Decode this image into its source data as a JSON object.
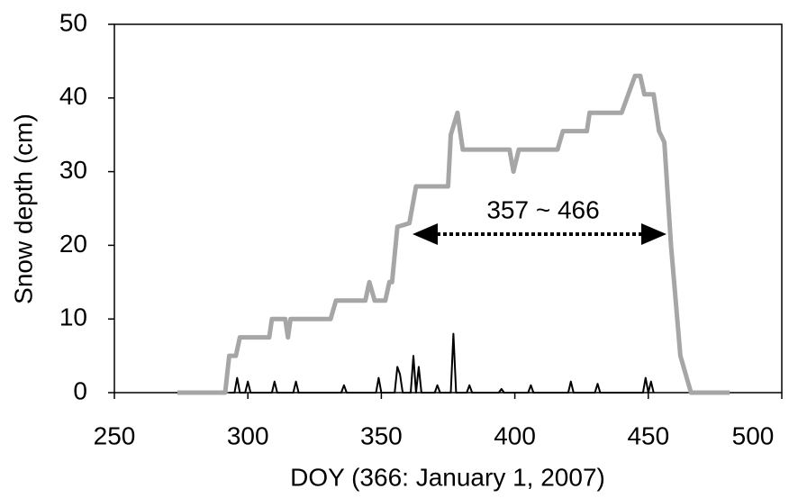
{
  "chart_data": {
    "type": "line",
    "x_label": "DOY (366: January 1, 2007)",
    "y_label": "Snow depth (cm)",
    "annotation": "357 ~ 466",
    "xlim": [
      250,
      500
    ],
    "xticks": [
      250,
      300,
      350,
      400,
      450,
      500
    ],
    "ylim": [
      0,
      50
    ],
    "yticks": [
      0,
      10,
      20,
      30,
      40,
      50
    ],
    "series": [
      {
        "color": "#a6a6a6",
        "width": 5,
        "x": [
          273.6,
          291.5,
          293,
          295.5,
          297,
          308,
          309,
          314,
          315,
          316,
          331,
          333,
          344,
          345.5,
          347.5,
          351.5,
          353,
          354,
          356,
          360.5,
          363,
          375,
          376,
          378.5,
          380.5,
          398,
          399.5,
          401.5,
          416,
          418,
          427,
          428,
          440,
          442.5,
          445,
          447,
          448.5,
          452,
          454,
          456,
          458.5,
          462,
          466,
          480.5
        ],
        "values": [
          0,
          0,
          5,
          5,
          7.5,
          7.5,
          10,
          10,
          7.5,
          10,
          10,
          12.5,
          12.5,
          15,
          12.5,
          12.5,
          15,
          15,
          22.5,
          23,
          28,
          28,
          35,
          38,
          33,
          33,
          30,
          33,
          33,
          35.5,
          35.5,
          38,
          38,
          40.5,
          43,
          43,
          40.5,
          40.5,
          35.5,
          34,
          20,
          5,
          0,
          0
        ]
      },
      {
        "color": "#000000",
        "width": 2,
        "x": [
          293,
          295,
          296,
          297,
          299,
          300,
          301,
          309,
          310,
          311,
          317,
          318,
          319,
          335,
          336,
          337,
          348,
          349,
          350,
          355,
          356,
          357,
          358,
          361,
          362,
          363,
          364,
          365,
          370,
          371,
          372,
          376,
          377,
          378,
          382,
          383,
          384,
          394,
          395,
          396,
          405,
          406,
          407,
          420,
          421,
          422,
          430,
          431,
          432,
          448,
          449,
          450,
          451,
          452
        ],
        "values": [
          0,
          0,
          2,
          0,
          0,
          1.5,
          0,
          0,
          1.5,
          0,
          0,
          1.5,
          0,
          0,
          1,
          0,
          0,
          2,
          0,
          0,
          3.5,
          2.5,
          0,
          0,
          5,
          0,
          3.5,
          0,
          0,
          1,
          0,
          0,
          8,
          0,
          0,
          1,
          0,
          0,
          0.5,
          0,
          0,
          1,
          0,
          0,
          1.5,
          0,
          0,
          1.2,
          0,
          0,
          2,
          0,
          1.5,
          0
        ]
      }
    ]
  }
}
